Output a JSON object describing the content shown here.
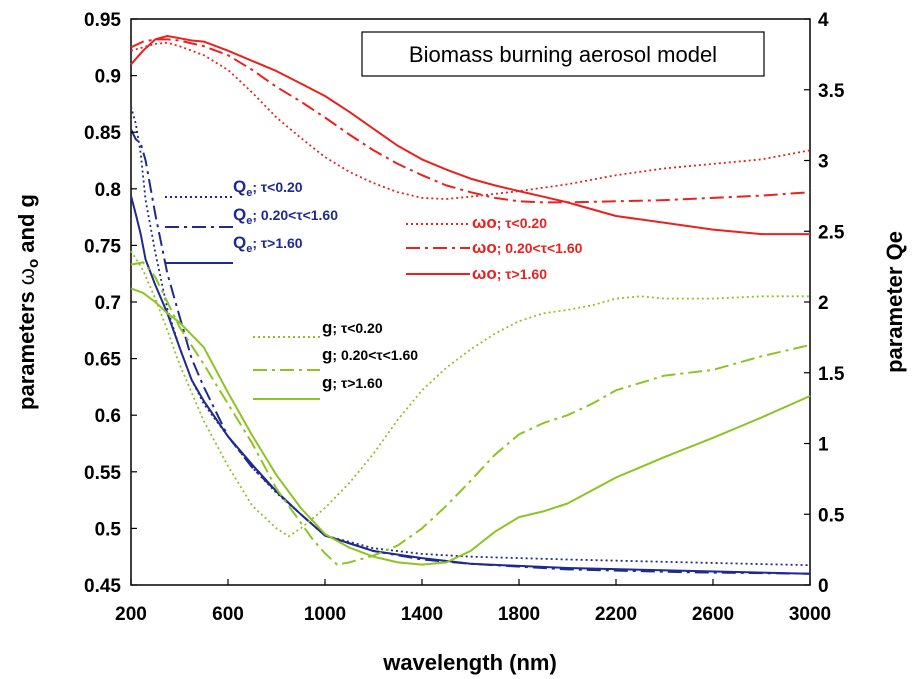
{
  "chart_data": {
    "type": "line",
    "title": "",
    "annotation": "Biomass burning aerosol model",
    "xlabel": "wavelength (nm)",
    "ylabel_left_prefix": "parameters ",
    "ylabel_left_symbol": "ω",
    "ylabel_left_sub": "o",
    "ylabel_left_suffix": " and g",
    "ylabel_right": "parameter Qe",
    "xlim": [
      200,
      3000
    ],
    "ylim_left": [
      0.45,
      0.95
    ],
    "ylim_right": [
      0,
      4
    ],
    "xticks": [
      200,
      600,
      1000,
      1400,
      1800,
      2200,
      2600,
      3000
    ],
    "xtick_labels": [
      "200",
      "600",
      "1000",
      "1400",
      "1800",
      "2200",
      "2600",
      "3000"
    ],
    "yticks_left": [
      0.45,
      0.5,
      0.55,
      0.6,
      0.65,
      0.7,
      0.75,
      0.8,
      0.85,
      0.9,
      0.95
    ],
    "ytick_labels_left": [
      "0.45",
      "0.5",
      "0.55",
      "0.6",
      "0.65",
      "0.7",
      "0.75",
      "0.8",
      "0.85",
      "0.9",
      "0.95"
    ],
    "yticks_right": [
      0,
      0.5,
      1,
      1.5,
      2,
      2.5,
      3,
      3.5,
      4
    ],
    "ytick_labels_right": [
      "0",
      "0.5",
      "1",
      "1.5",
      "2",
      "2.5",
      "3",
      "3.5",
      "4"
    ],
    "grid": false,
    "series": [
      {
        "id": "qe1",
        "name_main": "Q",
        "name_sub": "e",
        "name_rest": "; τ<0.20",
        "axis": "right",
        "color": "#1f2a8f",
        "style": "dotted",
        "x": [
          200,
          220,
          240,
          260,
          300,
          350,
          400,
          450,
          500,
          600,
          700,
          800,
          900,
          1000,
          1200,
          1400,
          1600,
          2000,
          2500,
          3000
        ],
        "y": [
          3.38,
          3.26,
          3.05,
          2.72,
          2.35,
          1.95,
          1.68,
          1.45,
          1.28,
          1.05,
          0.83,
          0.65,
          0.5,
          0.35,
          0.26,
          0.22,
          0.2,
          0.18,
          0.16,
          0.14
        ]
      },
      {
        "id": "qe2",
        "name_main": "Q",
        "name_sub": "e",
        "name_rest": "; 0.20<τ<1.60",
        "axis": "right",
        "color": "#1f2a8f",
        "style": "dashdot",
        "x": [
          200,
          220,
          240,
          260,
          300,
          350,
          400,
          450,
          500,
          600,
          700,
          800,
          900,
          1000,
          1200,
          1400,
          1600,
          2000,
          2500,
          3000
        ],
        "y": [
          3.22,
          3.15,
          3.12,
          3.0,
          2.62,
          2.2,
          1.9,
          1.6,
          1.4,
          1.05,
          0.83,
          0.66,
          0.5,
          0.35,
          0.24,
          0.18,
          0.15,
          0.11,
          0.09,
          0.08
        ]
      },
      {
        "id": "qe3",
        "name_main": "Q",
        "name_sub": "e",
        "name_rest": "; τ>1.60",
        "axis": "right",
        "color": "#1f2a8f",
        "style": "solid",
        "x": [
          200,
          220,
          240,
          260,
          300,
          350,
          400,
          450,
          500,
          600,
          700,
          800,
          900,
          1000,
          1200,
          1400,
          1600,
          2000,
          2500,
          3000
        ],
        "y": [
          2.75,
          2.62,
          2.48,
          2.3,
          2.12,
          1.92,
          1.68,
          1.45,
          1.3,
          1.05,
          0.85,
          0.66,
          0.5,
          0.35,
          0.24,
          0.19,
          0.15,
          0.12,
          0.1,
          0.08
        ]
      },
      {
        "id": "w1",
        "name_main": "ωo",
        "name_sub": "",
        "name_rest": "; τ<0.20",
        "axis": "left",
        "color": "#e8221e",
        "style": "dotted",
        "x": [
          200,
          250,
          300,
          350,
          400,
          500,
          600,
          700,
          800,
          900,
          1000,
          1100,
          1200,
          1300,
          1400,
          1500,
          1600,
          1800,
          2000,
          2200,
          2400,
          2600,
          2800,
          3000
        ],
        "y": [
          0.922,
          0.925,
          0.928,
          0.929,
          0.926,
          0.918,
          0.905,
          0.885,
          0.863,
          0.845,
          0.828,
          0.815,
          0.805,
          0.797,
          0.792,
          0.791,
          0.793,
          0.798,
          0.804,
          0.812,
          0.818,
          0.822,
          0.826,
          0.834
        ]
      },
      {
        "id": "w2",
        "name_main": "ωo",
        "name_sub": "",
        "name_rest": "; 0.20<τ<1.60",
        "axis": "left",
        "color": "#e8221e",
        "style": "dashdot",
        "x": [
          200,
          250,
          300,
          350,
          400,
          500,
          600,
          700,
          800,
          900,
          1000,
          1100,
          1200,
          1300,
          1400,
          1500,
          1600,
          1700,
          1800,
          1900,
          2000,
          2200,
          2400,
          2600,
          2800,
          3000
        ],
        "y": [
          0.925,
          0.93,
          0.932,
          0.932,
          0.931,
          0.926,
          0.918,
          0.905,
          0.89,
          0.877,
          0.863,
          0.848,
          0.834,
          0.822,
          0.812,
          0.803,
          0.797,
          0.792,
          0.789,
          0.788,
          0.788,
          0.789,
          0.79,
          0.792,
          0.794,
          0.797
        ]
      },
      {
        "id": "w3",
        "name_main": "ωo",
        "name_sub": "",
        "name_rest": "; τ>1.60",
        "axis": "left",
        "color": "#e8221e",
        "style": "solid",
        "x": [
          200,
          250,
          300,
          350,
          400,
          450,
          500,
          600,
          700,
          800,
          900,
          1000,
          1100,
          1200,
          1300,
          1400,
          1500,
          1600,
          1700,
          1800,
          1900,
          2000,
          2200,
          2400,
          2600,
          2800,
          3000
        ],
        "y": [
          0.91,
          0.922,
          0.932,
          0.935,
          0.933,
          0.931,
          0.93,
          0.922,
          0.913,
          0.904,
          0.893,
          0.882,
          0.868,
          0.853,
          0.838,
          0.826,
          0.817,
          0.809,
          0.803,
          0.798,
          0.793,
          0.788,
          0.776,
          0.77,
          0.764,
          0.76,
          0.76
        ]
      },
      {
        "id": "g1",
        "name_main": "g",
        "name_sub": "",
        "name_rest": "; τ<0.20",
        "axis": "left",
        "color": "#8ec422",
        "style": "dotted",
        "x": [
          200,
          250,
          300,
          350,
          400,
          500,
          600,
          700,
          800,
          850,
          900,
          1000,
          1100,
          1200,
          1300,
          1400,
          1500,
          1600,
          1700,
          1800,
          1900,
          2000,
          2100,
          2200,
          2300,
          2400,
          2600,
          2800,
          3000
        ],
        "y": [
          0.745,
          0.728,
          0.703,
          0.675,
          0.645,
          0.595,
          0.555,
          0.52,
          0.5,
          0.493,
          0.5,
          0.518,
          0.54,
          0.566,
          0.596,
          0.622,
          0.642,
          0.658,
          0.672,
          0.683,
          0.69,
          0.693,
          0.697,
          0.703,
          0.705,
          0.703,
          0.703,
          0.705,
          0.705
        ]
      },
      {
        "id": "g2",
        "name_main": "g",
        "name_sub": "",
        "name_rest": "; 0.20<τ<1.60",
        "axis": "left",
        "color": "#8ec422",
        "style": "dashdot",
        "x": [
          200,
          250,
          300,
          350,
          400,
          500,
          600,
          700,
          800,
          900,
          950,
          1000,
          1050,
          1100,
          1200,
          1300,
          1400,
          1500,
          1600,
          1700,
          1800,
          1900,
          2000,
          2100,
          2200,
          2400,
          2600,
          2800,
          3000
        ],
        "y": [
          0.733,
          0.735,
          0.722,
          0.7,
          0.678,
          0.645,
          0.61,
          0.575,
          0.535,
          0.505,
          0.49,
          0.478,
          0.468,
          0.47,
          0.476,
          0.485,
          0.5,
          0.52,
          0.542,
          0.565,
          0.583,
          0.593,
          0.6,
          0.61,
          0.622,
          0.635,
          0.64,
          0.652,
          0.662
        ]
      },
      {
        "id": "g3",
        "name_main": "g",
        "name_sub": "",
        "name_rest": "; τ>1.60",
        "axis": "left",
        "color": "#8ec422",
        "style": "solid",
        "x": [
          200,
          250,
          300,
          350,
          400,
          500,
          600,
          700,
          800,
          900,
          1000,
          1100,
          1200,
          1300,
          1400,
          1500,
          1600,
          1700,
          1800,
          1900,
          2000,
          2200,
          2400,
          2600,
          2800,
          3000
        ],
        "y": [
          0.712,
          0.708,
          0.7,
          0.69,
          0.682,
          0.66,
          0.62,
          0.582,
          0.547,
          0.518,
          0.495,
          0.483,
          0.475,
          0.47,
          0.468,
          0.47,
          0.48,
          0.497,
          0.51,
          0.515,
          0.522,
          0.545,
          0.563,
          0.58,
          0.598,
          0.617
        ]
      }
    ]
  }
}
